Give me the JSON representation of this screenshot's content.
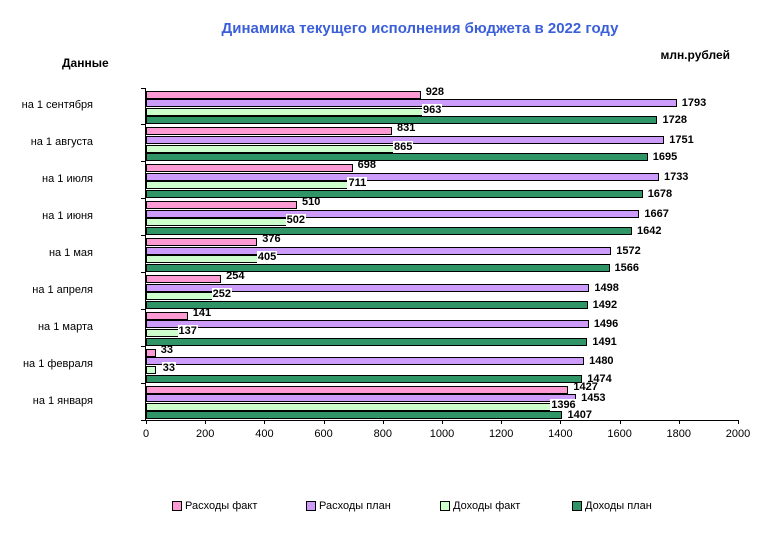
{
  "labels": {
    "top_left": "Данные",
    "units": "млн.рублей"
  },
  "chart_data": {
    "type": "bar",
    "orientation": "horizontal",
    "title": "Динамика текущего исполнения бюджета в 2022 году",
    "title_color": "#3A5FD9",
    "categories": [
      "на 1 сентября",
      "на 1 августа",
      "на 1 июля",
      "на 1 июня",
      "на 1 мая",
      "на 1 апреля",
      "на 1 марта",
      "на 1 февраля",
      "на 1 января"
    ],
    "series": [
      {
        "name": "Расходы факт",
        "color": "#FC9BD3",
        "values": [
          928,
          831,
          698,
          510,
          376,
          254,
          141,
          33,
          1427
        ]
      },
      {
        "name": "Расходы план",
        "color": "#CD9BFA",
        "values": [
          1793,
          1751,
          1733,
          1667,
          1572,
          1498,
          1496,
          1480,
          1453
        ]
      },
      {
        "name": "Доходы факт",
        "color": "#CCFFCC",
        "values": [
          963,
          865,
          711,
          502,
          405,
          252,
          137,
          33,
          1396
        ]
      },
      {
        "name": "Доходы план",
        "color": "#2F9566",
        "values": [
          1728,
          1695,
          1678,
          1642,
          1566,
          1492,
          1491,
          1474,
          1407
        ]
      }
    ],
    "xlim": [
      0,
      2000
    ],
    "x_ticks": [
      0,
      200,
      400,
      600,
      800,
      1000,
      1200,
      1400,
      1600,
      1800,
      2000
    ],
    "grid": false,
    "legend_position": "bottom",
    "bar_border_color": "#000000"
  }
}
